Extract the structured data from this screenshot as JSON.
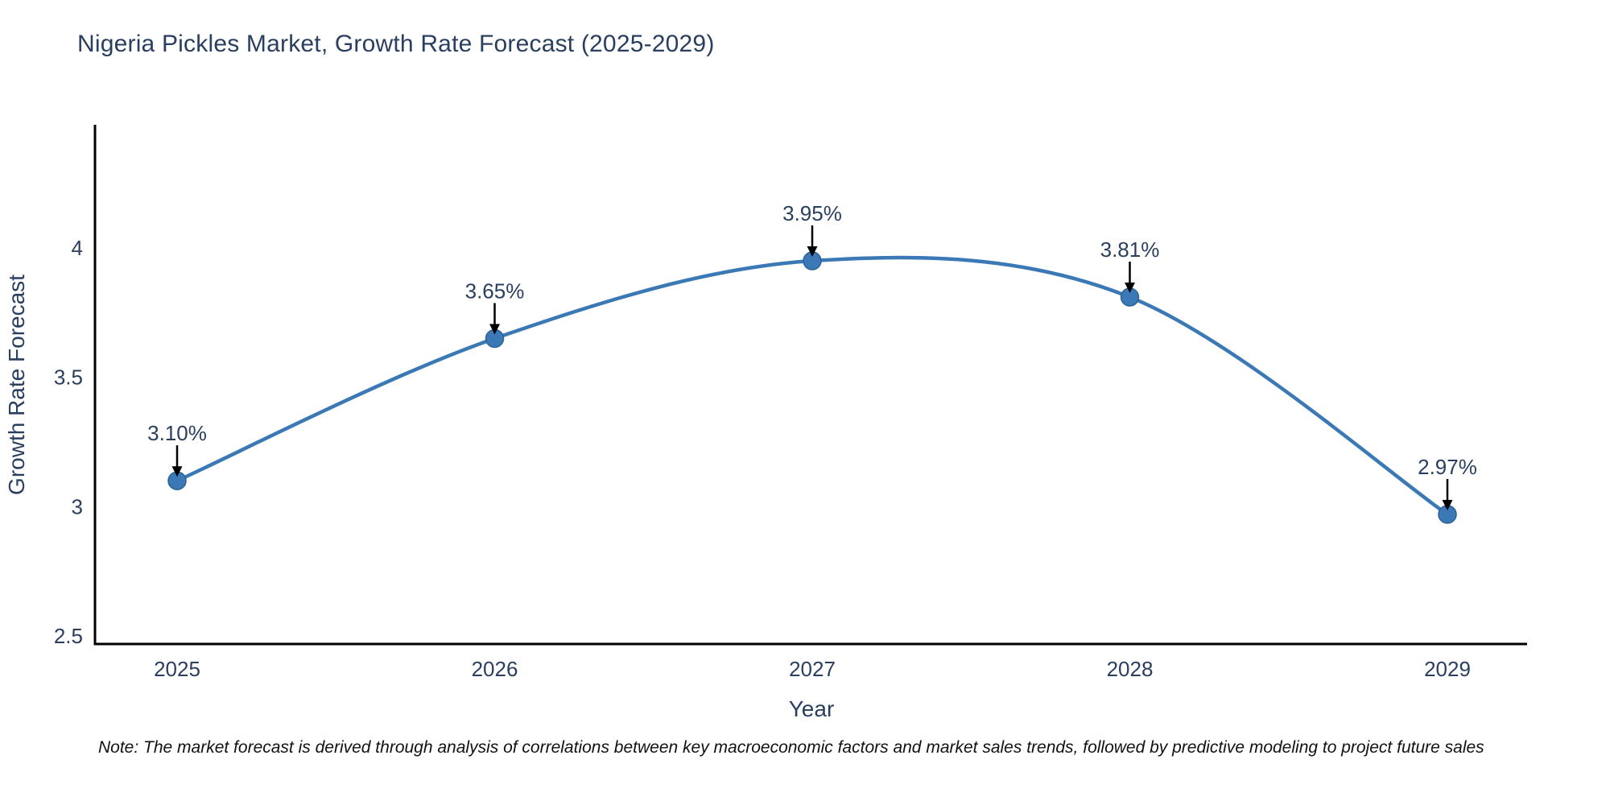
{
  "title": "Nigeria Pickles Market, Growth Rate Forecast (2025-2029)",
  "note": "Note: The market forecast is derived through analysis of correlations between key macroeconomic factors and market sales trends, followed by predictive modeling to project future sales",
  "colors": {
    "text": "#2a3f5f",
    "axis_line": "#000000",
    "background": "#ffffff",
    "annotation_arrow": "#000000"
  },
  "chart_data": {
    "type": "line",
    "line_shape": "spline",
    "title": "Nigeria Pickles Market, Growth Rate Forecast (2025-2029)",
    "xlabel": "Year",
    "ylabel": "Growth Rate Forecast",
    "categories": [
      "2025",
      "2026",
      "2027",
      "2028",
      "2029"
    ],
    "values": [
      3.1,
      3.65,
      3.95,
      3.81,
      2.97
    ],
    "point_labels": [
      "3.10%",
      "3.65%",
      "3.95%",
      "3.81%",
      "2.97%"
    ],
    "yticks": [
      2.5,
      3,
      3.5,
      4
    ],
    "ytick_labels": [
      "2.5",
      "3",
      "3.5",
      "4"
    ],
    "ylim": [
      2.469,
      4.476
    ],
    "grid": false,
    "legend": "none",
    "line_color": "#3a79b5",
    "marker_color": "#3a79b5",
    "marker_edge_color": "#2e6397"
  }
}
